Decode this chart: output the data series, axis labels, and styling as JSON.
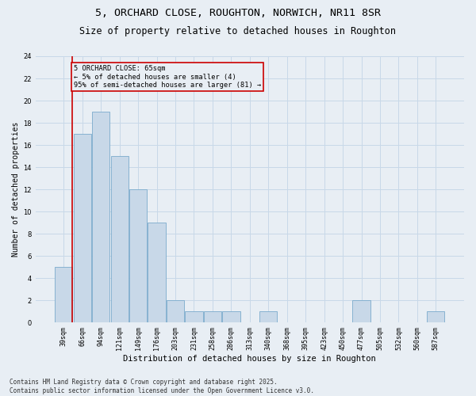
{
  "title": "5, ORCHARD CLOSE, ROUGHTON, NORWICH, NR11 8SR",
  "subtitle": "Size of property relative to detached houses in Roughton",
  "xlabel": "Distribution of detached houses by size in Roughton",
  "ylabel": "Number of detached properties",
  "categories": [
    "39sqm",
    "66sqm",
    "94sqm",
    "121sqm",
    "149sqm",
    "176sqm",
    "203sqm",
    "231sqm",
    "258sqm",
    "286sqm",
    "313sqm",
    "340sqm",
    "368sqm",
    "395sqm",
    "423sqm",
    "450sqm",
    "477sqm",
    "505sqm",
    "532sqm",
    "560sqm",
    "587sqm"
  ],
  "values": [
    5,
    17,
    19,
    15,
    12,
    9,
    2,
    1,
    1,
    1,
    0,
    1,
    0,
    0,
    0,
    0,
    2,
    0,
    0,
    0,
    1
  ],
  "bar_color": "#c8d8e8",
  "bar_edge_color": "#7aabcc",
  "grid_color": "#c8d8e8",
  "bg_color": "#e8eef4",
  "annotation_box_text": "5 ORCHARD CLOSE: 65sqm\n← 5% of detached houses are smaller (4)\n95% of semi-detached houses are larger (81) →",
  "annotation_box_color": "#cc0000",
  "vline_color": "#cc0000",
  "ylim": [
    0,
    24
  ],
  "yticks": [
    0,
    2,
    4,
    6,
    8,
    10,
    12,
    14,
    16,
    18,
    20,
    22,
    24
  ],
  "footer": "Contains HM Land Registry data © Crown copyright and database right 2025.\nContains public sector information licensed under the Open Government Licence v3.0.",
  "title_fontsize": 9.5,
  "subtitle_fontsize": 8.5,
  "xlabel_fontsize": 7.5,
  "ylabel_fontsize": 7,
  "tick_fontsize": 6,
  "footer_fontsize": 5.5,
  "annotation_fontsize": 6.2
}
